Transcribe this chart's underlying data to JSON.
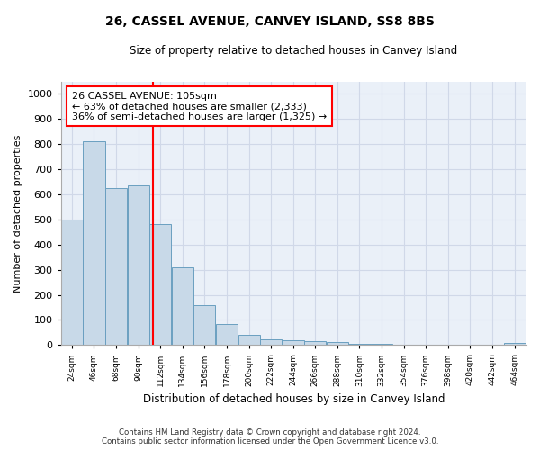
{
  "title": "26, CASSEL AVENUE, CANVEY ISLAND, SS8 8BS",
  "subtitle": "Size of property relative to detached houses in Canvey Island",
  "xlabel": "Distribution of detached houses by size in Canvey Island",
  "ylabel": "Number of detached properties",
  "annotation_title": "26 CASSEL AVENUE: 105sqm",
  "annotation_line1": "← 63% of detached houses are smaller (2,333)",
  "annotation_line2": "36% of semi-detached houses are larger (1,325) →",
  "footer1": "Contains HM Land Registry data © Crown copyright and database right 2024.",
  "footer2": "Contains public sector information licensed under the Open Government Licence v3.0.",
  "bar_color": "#c8d9e8",
  "bar_edge_color": "#6a9fc0",
  "property_line_x": 105,
  "ylim": [
    0,
    1050
  ],
  "yticks": [
    0,
    100,
    200,
    300,
    400,
    500,
    600,
    700,
    800,
    900,
    1000
  ],
  "categories": [
    24,
    46,
    68,
    90,
    112,
    134,
    156,
    178,
    200,
    222,
    244,
    266,
    288,
    310,
    332,
    354,
    376,
    398,
    420,
    442,
    464
  ],
  "tick_labels": [
    "24sqm",
    "46sqm",
    "68sqm",
    "90sqm",
    "112sqm",
    "134sqm",
    "156sqm",
    "178sqm",
    "200sqm",
    "222sqm",
    "244sqm",
    "266sqm",
    "288sqm",
    "310sqm",
    "332sqm",
    "354sqm",
    "376sqm",
    "398sqm",
    "420sqm",
    "442sqm",
    "464sqm"
  ],
  "values": [
    500,
    810,
    625,
    635,
    480,
    310,
    160,
    82,
    42,
    22,
    20,
    15,
    10,
    6,
    3,
    2,
    2,
    1,
    1,
    1,
    8
  ],
  "grid_color": "#d0d8e8",
  "background_color": "#eaf0f8"
}
